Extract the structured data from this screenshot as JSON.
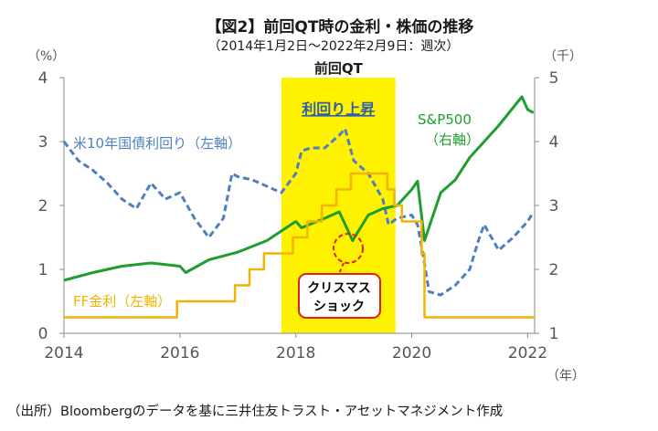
{
  "title": "【図2】前回QT時の金利・株価の推移",
  "subtitle": "（2014年1月2日～2022年2月9日：週次）",
  "source": "（出所）Bloombergのデータを基に三井住友トラスト・アセットマネジメント作成",
  "colors": {
    "us10y": "#4f7fbf",
    "sp500": "#1e9e2c",
    "ff": "#f2b400",
    "qt_band": "#fff200",
    "bubble": "#e0201a",
    "axis": "#8a8a8a"
  },
  "chart_data": {
    "type": "line",
    "title": "【図2】前回QT時の金利・株価の推移",
    "subtitle": "（2014年1月2日～2022年2月9日：週次）",
    "xlabel": "（年）",
    "ylabel_left": "（%）",
    "ylabel_right": "（千）",
    "x_ticks": [
      "2014",
      "2016",
      "2018",
      "2020",
      "2022"
    ],
    "y_left_ticks": [
      "0",
      "1",
      "2",
      "3",
      "4"
    ],
    "y_right_ticks": [
      "1",
      "2",
      "3",
      "4",
      "5"
    ],
    "xlim": [
      2014.0,
      2022.12
    ],
    "ylim_left": [
      0,
      4
    ],
    "ylim_right": [
      1,
      5
    ],
    "grid": false,
    "shaded_period": {
      "start": 2017.75,
      "end": 2019.72,
      "label_top": "前回QT",
      "label_inner": "利回り上昇"
    },
    "series": [
      {
        "name": "米10年国債利回り（左軸）",
        "axis": "left",
        "style": "dashed",
        "x": [
          2014.0,
          2014.25,
          2014.5,
          2014.75,
          2015.0,
          2015.25,
          2015.5,
          2015.75,
          2016.0,
          2016.25,
          2016.5,
          2016.75,
          2016.9,
          2017.0,
          2017.25,
          2017.5,
          2017.75,
          2018.0,
          2018.1,
          2018.25,
          2018.5,
          2018.75,
          2018.85,
          2019.0,
          2019.25,
          2019.5,
          2019.6,
          2019.75,
          2020.0,
          2020.1,
          2020.2,
          2020.3,
          2020.5,
          2020.75,
          2021.0,
          2021.15,
          2021.25,
          2021.5,
          2021.75,
          2022.0,
          2022.1
        ],
        "values": [
          3.0,
          2.7,
          2.55,
          2.35,
          2.1,
          1.95,
          2.35,
          2.1,
          2.2,
          1.8,
          1.5,
          1.8,
          2.5,
          2.45,
          2.4,
          2.3,
          2.2,
          2.5,
          2.85,
          2.9,
          2.9,
          3.1,
          3.2,
          2.7,
          2.5,
          2.1,
          1.7,
          1.8,
          1.85,
          1.7,
          1.2,
          0.65,
          0.6,
          0.75,
          1.0,
          1.45,
          1.7,
          1.3,
          1.5,
          1.75,
          1.9
        ]
      },
      {
        "name": "S&P500（右軸）",
        "axis": "right",
        "style": "solid",
        "x": [
          2014.0,
          2014.5,
          2015.0,
          2015.5,
          2016.0,
          2016.1,
          2016.5,
          2017.0,
          2017.5,
          2018.0,
          2018.1,
          2018.5,
          2018.75,
          2018.98,
          2019.25,
          2019.5,
          2019.75,
          2020.0,
          2020.1,
          2020.22,
          2020.5,
          2020.75,
          2021.0,
          2021.5,
          2021.9,
          2022.0,
          2022.1
        ],
        "values": [
          1.83,
          1.95,
          2.05,
          2.1,
          2.05,
          1.95,
          2.15,
          2.27,
          2.45,
          2.75,
          2.65,
          2.8,
          2.9,
          2.45,
          2.85,
          2.95,
          3.0,
          3.25,
          3.38,
          2.45,
          3.2,
          3.4,
          3.75,
          4.25,
          4.7,
          4.5,
          4.45
        ]
      },
      {
        "name": "FF金利（左軸）",
        "axis": "left",
        "style": "step",
        "x": [
          2014.0,
          2015.95,
          2016.95,
          2017.2,
          2017.45,
          2017.95,
          2018.2,
          2018.45,
          2018.7,
          2018.95,
          2019.58,
          2019.7,
          2019.83,
          2020.17,
          2020.22,
          2022.12
        ],
        "values": [
          0.25,
          0.5,
          0.75,
          1.0,
          1.25,
          1.5,
          1.75,
          2.0,
          2.25,
          2.5,
          2.25,
          2.0,
          1.75,
          1.25,
          0.25,
          0.25
        ]
      }
    ],
    "annotations": [
      {
        "text": "米10年国債利回り（左軸）",
        "color": "#4f7fbf"
      },
      {
        "text": "S&P500",
        "color": "#1e9e2c"
      },
      {
        "text": "（右軸）",
        "color": "#1e9e2c"
      },
      {
        "text": "FF金利（左軸）",
        "color": "#f2b400"
      },
      {
        "text": "クリスマス",
        "color": "#e0201a"
      },
      {
        "text": "ショック",
        "color": "#e0201a"
      }
    ]
  }
}
